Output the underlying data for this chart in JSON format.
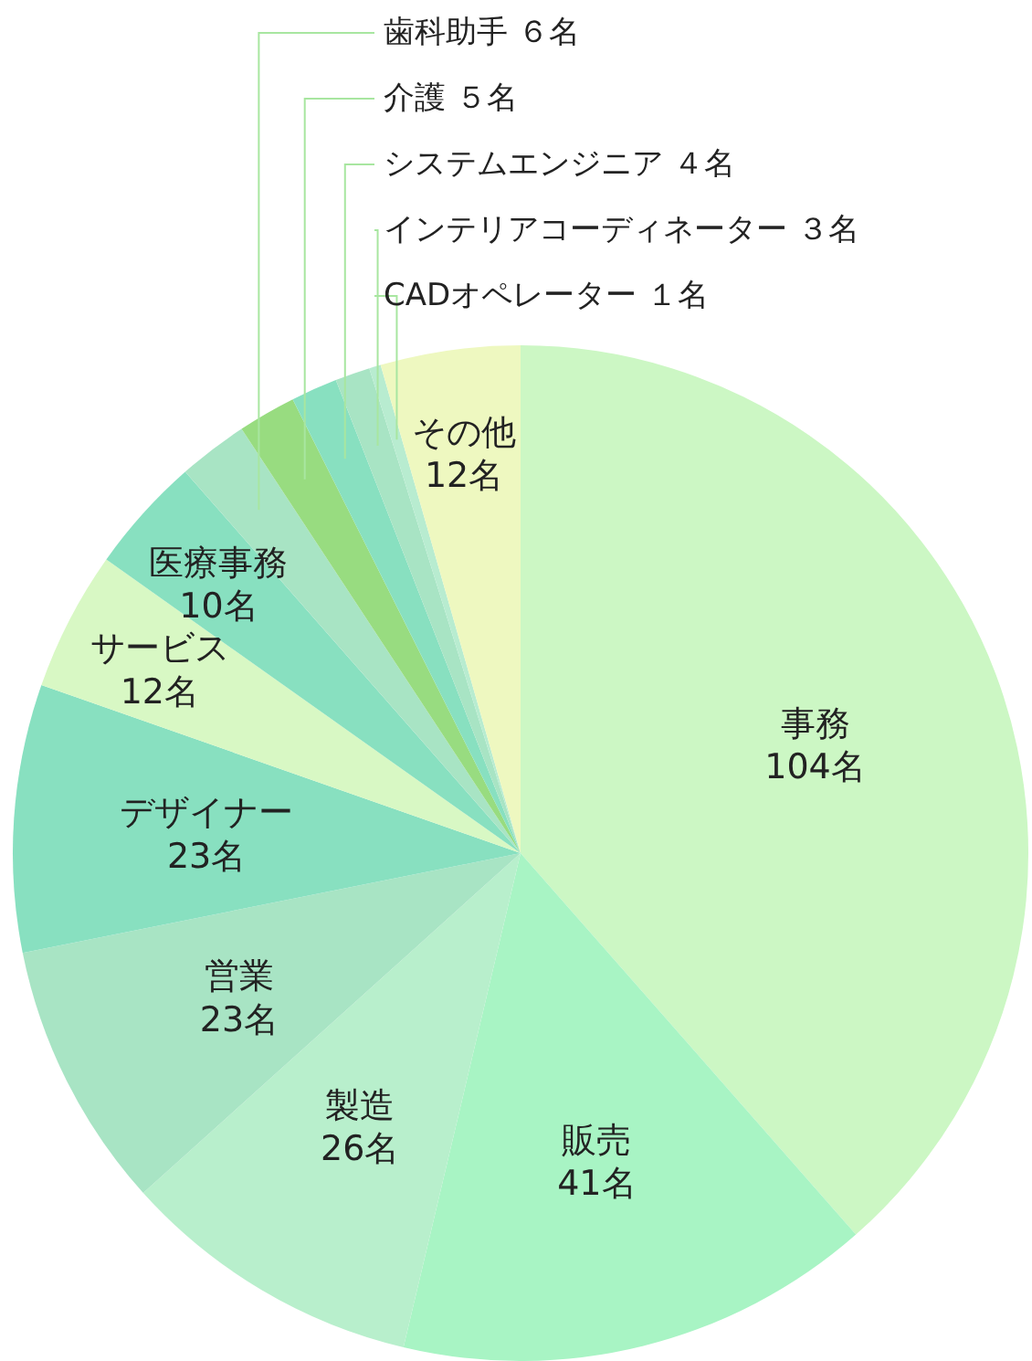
{
  "chart_data": {
    "type": "pie",
    "categories": [
      "事務",
      "販売",
      "製造",
      "営業",
      "デザイナー",
      "サービス",
      "医療事務",
      "歯科助手",
      "介護",
      "システムエンジニア",
      "インテリアコーディネーター",
      "CADオペレーター",
      "その他"
    ],
    "values": [
      104,
      41,
      26,
      23,
      23,
      12,
      10,
      6,
      5,
      4,
      3,
      1,
      12
    ],
    "value_labels": [
      "104名",
      "41名",
      "26名",
      "23名",
      "23名",
      "12名",
      "10名",
      "６名",
      "５名",
      "４名",
      "３名",
      "１名",
      "12名"
    ],
    "colors": [
      "#ccf7c4",
      "#a8f4c4",
      "#b8efcc",
      "#a8e4c4",
      "#88e0c0",
      "#d8f8c4",
      "#88e0c0",
      "#a8e4c4",
      "#98dc80",
      "#88e0c0",
      "#a8e4c4",
      "#b8ecd0",
      "#eef8c0"
    ]
  }
}
